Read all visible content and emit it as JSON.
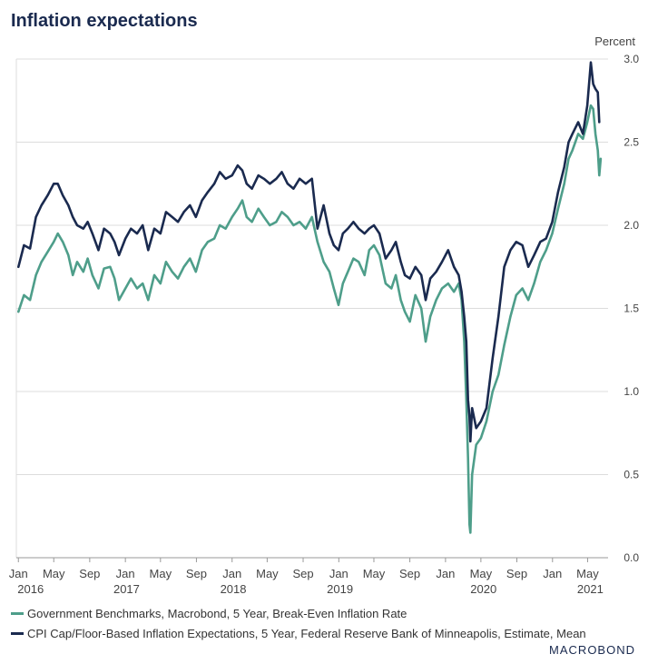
{
  "chart_data": {
    "type": "line",
    "title": "Inflation expectations",
    "unit_label": "Percent",
    "ylim": [
      0.0,
      3.0
    ],
    "yticks": [
      "0.0",
      "0.5",
      "1.0",
      "1.5",
      "2.0",
      "2.5",
      "3.0"
    ],
    "xlim": [
      "2015-12-25",
      "2021-07-10"
    ],
    "x_month_ticks": [
      {
        "date": "2016-01-01",
        "label": "Jan"
      },
      {
        "date": "2016-05-01",
        "label": "May"
      },
      {
        "date": "2016-09-01",
        "label": "Sep"
      },
      {
        "date": "2017-01-01",
        "label": "Jan"
      },
      {
        "date": "2017-05-01",
        "label": "May"
      },
      {
        "date": "2017-09-01",
        "label": "Sep"
      },
      {
        "date": "2018-01-01",
        "label": "Jan"
      },
      {
        "date": "2018-05-01",
        "label": "May"
      },
      {
        "date": "2018-09-01",
        "label": "Sep"
      },
      {
        "date": "2019-01-01",
        "label": "Jan"
      },
      {
        "date": "2019-05-01",
        "label": "May"
      },
      {
        "date": "2019-09-01",
        "label": "Sep"
      },
      {
        "date": "2020-01-01",
        "label": "Jan"
      },
      {
        "date": "2020-05-01",
        "label": "May"
      },
      {
        "date": "2020-09-01",
        "label": "Sep"
      },
      {
        "date": "2021-01-01",
        "label": "Jan"
      },
      {
        "date": "2021-05-01",
        "label": "May"
      }
    ],
    "x_year_labels": [
      {
        "label": "2016",
        "date": "2015-12-29"
      },
      {
        "label": "2017",
        "date": "2017-01-05"
      },
      {
        "label": "2018",
        "date": "2018-01-05"
      },
      {
        "label": "2019",
        "date": "2019-01-05"
      },
      {
        "label": "2020",
        "date": "2020-05-10"
      },
      {
        "label": "2021",
        "date": "2021-05-10"
      }
    ],
    "grid": true,
    "legend_position": "bottom",
    "series": [
      {
        "name": "Government Benchmarks, Macrobond, 5 Year, Break-Even Inflation Rate",
        "color": "#4e9e8a",
        "points": [
          [
            "2016-01-01",
            1.48
          ],
          [
            "2016-01-20",
            1.58
          ],
          [
            "2016-02-10",
            1.55
          ],
          [
            "2016-03-01",
            1.7
          ],
          [
            "2016-03-20",
            1.78
          ],
          [
            "2016-04-10",
            1.84
          ],
          [
            "2016-05-01",
            1.9
          ],
          [
            "2016-05-15",
            1.95
          ],
          [
            "2016-06-01",
            1.9
          ],
          [
            "2016-06-20",
            1.82
          ],
          [
            "2016-07-05",
            1.7
          ],
          [
            "2016-07-20",
            1.78
          ],
          [
            "2016-08-10",
            1.72
          ],
          [
            "2016-08-25",
            1.8
          ],
          [
            "2016-09-10",
            1.7
          ],
          [
            "2016-10-01",
            1.62
          ],
          [
            "2016-10-20",
            1.74
          ],
          [
            "2016-11-10",
            1.75
          ],
          [
            "2016-11-25",
            1.68
          ],
          [
            "2016-12-10",
            1.55
          ],
          [
            "2017-01-01",
            1.62
          ],
          [
            "2017-01-20",
            1.68
          ],
          [
            "2017-02-10",
            1.62
          ],
          [
            "2017-03-01",
            1.65
          ],
          [
            "2017-03-20",
            1.55
          ],
          [
            "2017-04-10",
            1.7
          ],
          [
            "2017-05-01",
            1.65
          ],
          [
            "2017-05-20",
            1.78
          ],
          [
            "2017-06-10",
            1.72
          ],
          [
            "2017-06-30",
            1.68
          ],
          [
            "2017-07-20",
            1.75
          ],
          [
            "2017-08-10",
            1.8
          ],
          [
            "2017-08-30",
            1.72
          ],
          [
            "2017-09-20",
            1.85
          ],
          [
            "2017-10-10",
            1.9
          ],
          [
            "2017-11-01",
            1.92
          ],
          [
            "2017-11-20",
            2.0
          ],
          [
            "2017-12-10",
            1.98
          ],
          [
            "2018-01-01",
            2.05
          ],
          [
            "2018-01-20",
            2.1
          ],
          [
            "2018-02-05",
            2.15
          ],
          [
            "2018-02-20",
            2.05
          ],
          [
            "2018-03-10",
            2.02
          ],
          [
            "2018-04-01",
            2.1
          ],
          [
            "2018-04-20",
            2.05
          ],
          [
            "2018-05-10",
            2.0
          ],
          [
            "2018-06-01",
            2.02
          ],
          [
            "2018-06-20",
            2.08
          ],
          [
            "2018-07-10",
            2.05
          ],
          [
            "2018-07-30",
            2.0
          ],
          [
            "2018-08-20",
            2.02
          ],
          [
            "2018-09-10",
            1.98
          ],
          [
            "2018-10-01",
            2.05
          ],
          [
            "2018-10-20",
            1.9
          ],
          [
            "2018-11-10",
            1.78
          ],
          [
            "2018-11-30",
            1.72
          ],
          [
            "2018-12-15",
            1.62
          ],
          [
            "2018-12-31",
            1.52
          ],
          [
            "2019-01-15",
            1.65
          ],
          [
            "2019-02-01",
            1.72
          ],
          [
            "2019-02-20",
            1.8
          ],
          [
            "2019-03-10",
            1.78
          ],
          [
            "2019-03-30",
            1.7
          ],
          [
            "2019-04-15",
            1.85
          ],
          [
            "2019-05-01",
            1.88
          ],
          [
            "2019-05-20",
            1.82
          ],
          [
            "2019-06-10",
            1.65
          ],
          [
            "2019-06-30",
            1.62
          ],
          [
            "2019-07-15",
            1.7
          ],
          [
            "2019-08-01",
            1.55
          ],
          [
            "2019-08-15",
            1.48
          ],
          [
            "2019-09-01",
            1.42
          ],
          [
            "2019-09-20",
            1.58
          ],
          [
            "2019-10-10",
            1.5
          ],
          [
            "2019-10-25",
            1.3
          ],
          [
            "2019-11-10",
            1.45
          ],
          [
            "2019-11-30",
            1.55
          ],
          [
            "2019-12-20",
            1.62
          ],
          [
            "2020-01-10",
            1.65
          ],
          [
            "2020-01-30",
            1.6
          ],
          [
            "2020-02-15",
            1.65
          ],
          [
            "2020-02-25",
            1.55
          ],
          [
            "2020-03-05",
            1.3
          ],
          [
            "2020-03-12",
            0.95
          ],
          [
            "2020-03-18",
            0.6
          ],
          [
            "2020-03-23",
            0.2
          ],
          [
            "2020-03-26",
            0.15
          ],
          [
            "2020-04-01",
            0.5
          ],
          [
            "2020-04-15",
            0.68
          ],
          [
            "2020-05-01",
            0.72
          ],
          [
            "2020-05-20",
            0.82
          ],
          [
            "2020-06-10",
            1.0
          ],
          [
            "2020-06-30",
            1.1
          ],
          [
            "2020-07-20",
            1.28
          ],
          [
            "2020-08-10",
            1.45
          ],
          [
            "2020-08-30",
            1.58
          ],
          [
            "2020-09-20",
            1.62
          ],
          [
            "2020-10-10",
            1.55
          ],
          [
            "2020-10-30",
            1.65
          ],
          [
            "2020-11-20",
            1.78
          ],
          [
            "2020-12-10",
            1.85
          ],
          [
            "2020-12-31",
            1.95
          ],
          [
            "2021-01-20",
            2.1
          ],
          [
            "2021-02-10",
            2.25
          ],
          [
            "2021-02-25",
            2.4
          ],
          [
            "2021-03-10",
            2.45
          ],
          [
            "2021-03-30",
            2.55
          ],
          [
            "2021-04-15",
            2.52
          ],
          [
            "2021-04-30",
            2.62
          ],
          [
            "2021-05-12",
            2.72
          ],
          [
            "2021-05-20",
            2.7
          ],
          [
            "2021-05-28",
            2.55
          ],
          [
            "2021-06-05",
            2.45
          ],
          [
            "2021-06-10",
            2.3
          ],
          [
            "2021-06-15",
            2.4
          ]
        ]
      },
      {
        "name": "CPI Cap/Floor-Based Inflation Expectations, 5 Year, Federal Reserve Bank of Minneapolis, Estimate, Mean",
        "color": "#1a2a4f",
        "points": [
          [
            "2016-01-01",
            1.75
          ],
          [
            "2016-01-20",
            1.88
          ],
          [
            "2016-02-10",
            1.86
          ],
          [
            "2016-03-01",
            2.05
          ],
          [
            "2016-03-20",
            2.12
          ],
          [
            "2016-04-10",
            2.18
          ],
          [
            "2016-05-01",
            2.25
          ],
          [
            "2016-05-15",
            2.25
          ],
          [
            "2016-06-01",
            2.18
          ],
          [
            "2016-06-20",
            2.12
          ],
          [
            "2016-07-05",
            2.05
          ],
          [
            "2016-07-20",
            2.0
          ],
          [
            "2016-08-10",
            1.98
          ],
          [
            "2016-08-25",
            2.02
          ],
          [
            "2016-09-10",
            1.95
          ],
          [
            "2016-10-01",
            1.85
          ],
          [
            "2016-10-20",
            1.98
          ],
          [
            "2016-11-10",
            1.95
          ],
          [
            "2016-11-25",
            1.9
          ],
          [
            "2016-12-10",
            1.82
          ],
          [
            "2017-01-01",
            1.92
          ],
          [
            "2017-01-20",
            1.98
          ],
          [
            "2017-02-10",
            1.95
          ],
          [
            "2017-03-01",
            2.0
          ],
          [
            "2017-03-20",
            1.85
          ],
          [
            "2017-04-10",
            1.98
          ],
          [
            "2017-05-01",
            1.95
          ],
          [
            "2017-05-20",
            2.08
          ],
          [
            "2017-06-10",
            2.05
          ],
          [
            "2017-06-30",
            2.02
          ],
          [
            "2017-07-20",
            2.08
          ],
          [
            "2017-08-10",
            2.12
          ],
          [
            "2017-08-30",
            2.05
          ],
          [
            "2017-09-20",
            2.15
          ],
          [
            "2017-10-10",
            2.2
          ],
          [
            "2017-11-01",
            2.25
          ],
          [
            "2017-11-20",
            2.32
          ],
          [
            "2017-12-10",
            2.28
          ],
          [
            "2018-01-01",
            2.3
          ],
          [
            "2018-01-20",
            2.36
          ],
          [
            "2018-02-05",
            2.33
          ],
          [
            "2018-02-20",
            2.25
          ],
          [
            "2018-03-10",
            2.22
          ],
          [
            "2018-04-01",
            2.3
          ],
          [
            "2018-04-20",
            2.28
          ],
          [
            "2018-05-10",
            2.25
          ],
          [
            "2018-06-01",
            2.28
          ],
          [
            "2018-06-20",
            2.32
          ],
          [
            "2018-07-10",
            2.25
          ],
          [
            "2018-07-30",
            2.22
          ],
          [
            "2018-08-20",
            2.28
          ],
          [
            "2018-09-10",
            2.25
          ],
          [
            "2018-10-01",
            2.28
          ],
          [
            "2018-10-20",
            1.98
          ],
          [
            "2018-11-10",
            2.12
          ],
          [
            "2018-11-30",
            1.95
          ],
          [
            "2018-12-15",
            1.88
          ],
          [
            "2018-12-31",
            1.85
          ],
          [
            "2019-01-15",
            1.95
          ],
          [
            "2019-02-01",
            1.98
          ],
          [
            "2019-02-20",
            2.02
          ],
          [
            "2019-03-10",
            1.98
          ],
          [
            "2019-03-30",
            1.95
          ],
          [
            "2019-04-15",
            1.98
          ],
          [
            "2019-05-01",
            2.0
          ],
          [
            "2019-05-20",
            1.95
          ],
          [
            "2019-06-10",
            1.8
          ],
          [
            "2019-06-30",
            1.85
          ],
          [
            "2019-07-15",
            1.9
          ],
          [
            "2019-08-01",
            1.78
          ],
          [
            "2019-08-15",
            1.7
          ],
          [
            "2019-09-01",
            1.68
          ],
          [
            "2019-09-20",
            1.75
          ],
          [
            "2019-10-10",
            1.7
          ],
          [
            "2019-10-25",
            1.55
          ],
          [
            "2019-11-10",
            1.68
          ],
          [
            "2019-11-30",
            1.72
          ],
          [
            "2019-12-20",
            1.78
          ],
          [
            "2020-01-10",
            1.85
          ],
          [
            "2020-01-30",
            1.75
          ],
          [
            "2020-02-15",
            1.7
          ],
          [
            "2020-02-25",
            1.6
          ],
          [
            "2020-03-05",
            1.45
          ],
          [
            "2020-03-12",
            1.3
          ],
          [
            "2020-03-18",
            0.95
          ],
          [
            "2020-03-23",
            0.85
          ],
          [
            "2020-03-26",
            0.7
          ],
          [
            "2020-04-01",
            0.9
          ],
          [
            "2020-04-15",
            0.78
          ],
          [
            "2020-05-01",
            0.82
          ],
          [
            "2020-05-20",
            0.9
          ],
          [
            "2020-06-10",
            1.2
          ],
          [
            "2020-06-30",
            1.45
          ],
          [
            "2020-07-20",
            1.75
          ],
          [
            "2020-08-10",
            1.85
          ],
          [
            "2020-08-30",
            1.9
          ],
          [
            "2020-09-20",
            1.88
          ],
          [
            "2020-10-10",
            1.75
          ],
          [
            "2020-10-30",
            1.82
          ],
          [
            "2020-11-20",
            1.9
          ],
          [
            "2020-12-10",
            1.92
          ],
          [
            "2020-12-31",
            2.02
          ],
          [
            "2021-01-20",
            2.2
          ],
          [
            "2021-02-10",
            2.35
          ],
          [
            "2021-02-25",
            2.5
          ],
          [
            "2021-03-10",
            2.55
          ],
          [
            "2021-03-30",
            2.62
          ],
          [
            "2021-04-15",
            2.55
          ],
          [
            "2021-04-30",
            2.72
          ],
          [
            "2021-05-12",
            2.98
          ],
          [
            "2021-05-20",
            2.85
          ],
          [
            "2021-05-28",
            2.82
          ],
          [
            "2021-06-05",
            2.8
          ],
          [
            "2021-06-10",
            2.62
          ]
        ]
      }
    ]
  },
  "legend": {
    "items": [
      {
        "label": "Government Benchmarks, Macrobond, 5 Year, Break-Even Inflation Rate",
        "color": "#4e9e8a"
      },
      {
        "label": "CPI Cap/Floor-Based Inflation Expectations, 5 Year, Federal Reserve Bank of Minneapolis, Estimate, Mean",
        "color": "#1a2a4f"
      }
    ]
  },
  "brand": "MACROBOND"
}
